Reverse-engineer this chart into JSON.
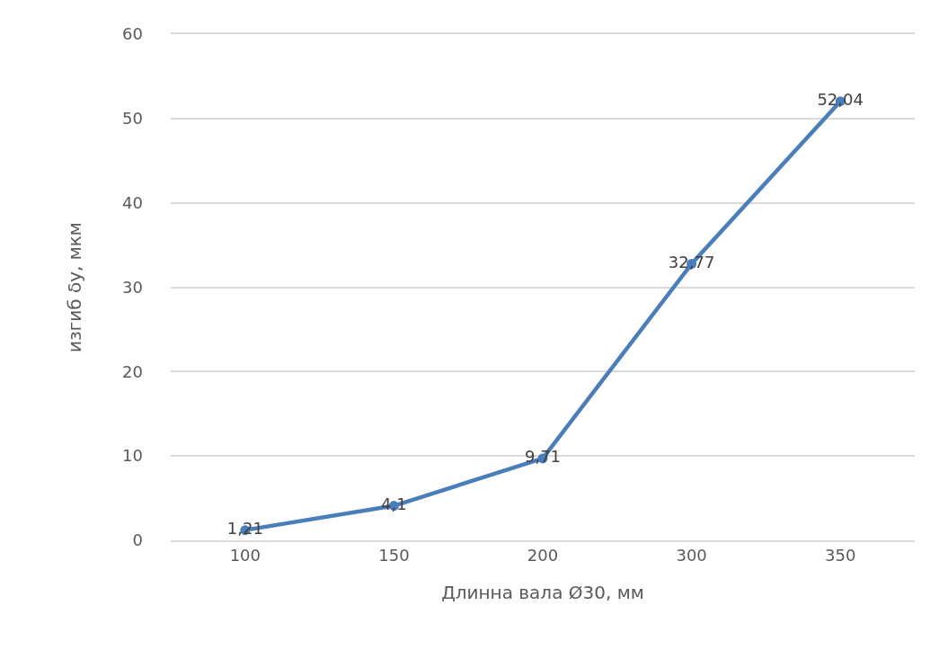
{
  "chart_data": {
    "type": "line",
    "xlabel": "Длинна вала Ø30, мм",
    "ylabel": "изгиб δу, мкм",
    "categories": [
      "100",
      "150",
      "200",
      "300",
      "350"
    ],
    "series": [
      {
        "color": "#4a7ebb",
        "values": [
          1.21,
          4.1,
          9.71,
          32.77,
          52.04
        ],
        "value_labels": [
          "1,21",
          "4,1",
          "9,71",
          "32,77",
          "52,04"
        ]
      }
    ],
    "ylim": [
      0,
      60
    ],
    "yticks": [
      0,
      10,
      20,
      30,
      40,
      50,
      60
    ],
    "grid": "y",
    "marker": "circle",
    "line_style": "solid"
  }
}
